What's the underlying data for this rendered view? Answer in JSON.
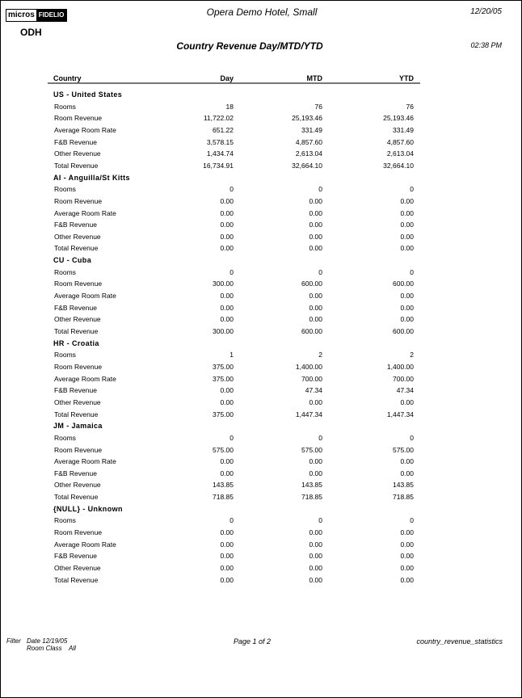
{
  "header": {
    "logo_text": "micros FIDELIO",
    "logo_left": "micros",
    "logo_right": "FIDELIO",
    "hotel_name": "Opera Demo Hotel, Small",
    "date": "12/20/05",
    "property_code": "ODH",
    "report_title": "Country Revenue Day/MTD/YTD",
    "time": "02:38 PM"
  },
  "table": {
    "columns": [
      "Country",
      "Day",
      "MTD",
      "YTD"
    ],
    "groups": [
      {
        "name": "US - United States",
        "rows": [
          {
            "label": "Rooms",
            "day": "18",
            "mtd": "76",
            "ytd": "76"
          },
          {
            "label": "Room Revenue",
            "day": "11,722.02",
            "mtd": "25,193.46",
            "ytd": "25,193.46"
          },
          {
            "label": "Average Room Rate",
            "day": "651.22",
            "mtd": "331.49",
            "ytd": "331.49"
          },
          {
            "label": "F&B Revenue",
            "day": "3,578.15",
            "mtd": "4,857.60",
            "ytd": "4,857.60"
          },
          {
            "label": "Other Revenue",
            "day": "1,434.74",
            "mtd": "2,613.04",
            "ytd": "2,613.04"
          },
          {
            "label": "Total Revenue",
            "day": "16,734.91",
            "mtd": "32,664.10",
            "ytd": "32,664.10"
          }
        ]
      },
      {
        "name": "AI - Anguilla/St Kitts",
        "rows": [
          {
            "label": "Rooms",
            "day": "0",
            "mtd": "0",
            "ytd": "0"
          },
          {
            "label": "Room Revenue",
            "day": "0.00",
            "mtd": "0.00",
            "ytd": "0.00"
          },
          {
            "label": "Average Room Rate",
            "day": "0.00",
            "mtd": "0.00",
            "ytd": "0.00"
          },
          {
            "label": "F&B Revenue",
            "day": "0.00",
            "mtd": "0.00",
            "ytd": "0.00"
          },
          {
            "label": "Other Revenue",
            "day": "0.00",
            "mtd": "0.00",
            "ytd": "0.00"
          },
          {
            "label": "Total Revenue",
            "day": "0.00",
            "mtd": "0.00",
            "ytd": "0.00"
          }
        ]
      },
      {
        "name": "CU - Cuba",
        "rows": [
          {
            "label": "Rooms",
            "day": "0",
            "mtd": "0",
            "ytd": "0"
          },
          {
            "label": "Room Revenue",
            "day": "300.00",
            "mtd": "600.00",
            "ytd": "600.00"
          },
          {
            "label": "Average Room Rate",
            "day": "0.00",
            "mtd": "0.00",
            "ytd": "0.00"
          },
          {
            "label": "F&B Revenue",
            "day": "0.00",
            "mtd": "0.00",
            "ytd": "0.00"
          },
          {
            "label": "Other Revenue",
            "day": "0.00",
            "mtd": "0.00",
            "ytd": "0.00"
          },
          {
            "label": "Total Revenue",
            "day": "300.00",
            "mtd": "600.00",
            "ytd": "600.00"
          }
        ]
      },
      {
        "name": "HR - Croatia",
        "rows": [
          {
            "label": "Rooms",
            "day": "1",
            "mtd": "2",
            "ytd": "2"
          },
          {
            "label": "Room Revenue",
            "day": "375.00",
            "mtd": "1,400.00",
            "ytd": "1,400.00"
          },
          {
            "label": "Average Room Rate",
            "day": "375.00",
            "mtd": "700.00",
            "ytd": "700.00"
          },
          {
            "label": "F&B Revenue",
            "day": "0.00",
            "mtd": "47.34",
            "ytd": "47.34"
          },
          {
            "label": "Other Revenue",
            "day": "0.00",
            "mtd": "0.00",
            "ytd": "0.00"
          },
          {
            "label": "Total Revenue",
            "day": "375.00",
            "mtd": "1,447.34",
            "ytd": "1,447.34"
          }
        ]
      },
      {
        "name": "JM - Jamaica",
        "rows": [
          {
            "label": "Rooms",
            "day": "0",
            "mtd": "0",
            "ytd": "0"
          },
          {
            "label": "Room Revenue",
            "day": "575.00",
            "mtd": "575.00",
            "ytd": "575.00"
          },
          {
            "label": "Average Room Rate",
            "day": "0.00",
            "mtd": "0.00",
            "ytd": "0.00"
          },
          {
            "label": "F&B Revenue",
            "day": "0.00",
            "mtd": "0.00",
            "ytd": "0.00"
          },
          {
            "label": "Other Revenue",
            "day": "143.85",
            "mtd": "143.85",
            "ytd": "143.85"
          },
          {
            "label": "Total Revenue",
            "day": "718.85",
            "mtd": "718.85",
            "ytd": "718.85"
          }
        ]
      },
      {
        "name": "{NULL} - Unknown",
        "rows": [
          {
            "label": "Rooms",
            "day": "0",
            "mtd": "0",
            "ytd": "0"
          },
          {
            "label": "Room Revenue",
            "day": "0.00",
            "mtd": "0.00",
            "ytd": "0.00"
          },
          {
            "label": "Average Room Rate",
            "day": "0.00",
            "mtd": "0.00",
            "ytd": "0.00"
          },
          {
            "label": "F&B Revenue",
            "day": "0.00",
            "mtd": "0.00",
            "ytd": "0.00"
          },
          {
            "label": "Other Revenue",
            "day": "0.00",
            "mtd": "0.00",
            "ytd": "0.00"
          },
          {
            "label": "Total Revenue",
            "day": "0.00",
            "mtd": "0.00",
            "ytd": "0.00"
          }
        ]
      }
    ]
  },
  "footer": {
    "filter_label": "Filter",
    "date_filter": "Date 12/19/05",
    "room_class_label": "Room Class",
    "room_class_value": "All",
    "page": "Page 1 of 2",
    "report_name": "country_revenue_statistics"
  }
}
